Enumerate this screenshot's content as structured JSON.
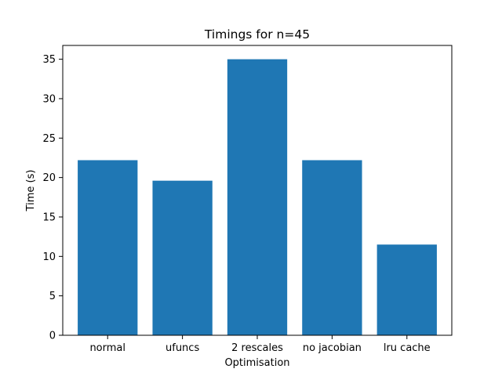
{
  "chart_data": {
    "type": "bar",
    "title": "Timings for n=45",
    "xlabel": "Optimisation",
    "ylabel": "Time (s)",
    "categories": [
      "normal",
      "ufuncs",
      "2 rescales",
      "no jacobian",
      "lru cache"
    ],
    "values": [
      22.2,
      19.6,
      35.0,
      22.2,
      11.5
    ],
    "ylim": [
      0,
      36.75
    ],
    "yticks": [
      0,
      5,
      10,
      15,
      20,
      25,
      30,
      35
    ],
    "bar_color": "#1f77b4",
    "grid": false,
    "legend": "none"
  }
}
